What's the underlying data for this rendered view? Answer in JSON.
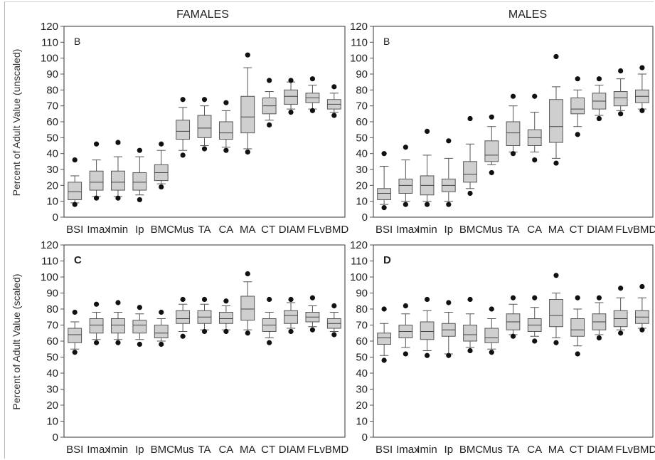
{
  "chart_data": {
    "type": "boxplot",
    "categories": [
      "BSI",
      "Imax",
      "Imin",
      "Ip",
      "BMC",
      "Mus",
      "TA",
      "CA",
      "MA",
      "CT",
      "DIAM",
      "FL",
      "vBMD"
    ],
    "ylim": [
      0,
      120
    ],
    "yticks": [
      0,
      10,
      20,
      30,
      40,
      50,
      60,
      70,
      80,
      90,
      100,
      110,
      120
    ],
    "column_titles": [
      "FAMALES",
      "MALES"
    ],
    "row_ylabels": [
      "Percent of Adult Value (unscaled)",
      "Percent of Adult Value (scaled)"
    ],
    "panels": [
      {
        "label": "B",
        "series": [
          {
            "min": 9,
            "q1": 11,
            "median": 16,
            "q3": 22,
            "max": 26,
            "outliers": [
              8,
              36
            ]
          },
          {
            "min": 13,
            "q1": 17,
            "median": 22,
            "q3": 29,
            "max": 36,
            "outliers": [
              12,
              46
            ]
          },
          {
            "min": 13,
            "q1": 17,
            "median": 22,
            "q3": 29,
            "max": 38,
            "outliers": [
              12,
              47
            ]
          },
          {
            "min": 14,
            "q1": 17,
            "median": 22,
            "q3": 28,
            "max": 38,
            "outliers": [
              11,
              42
            ]
          },
          {
            "min": 21,
            "q1": 23,
            "median": 28,
            "q3": 33,
            "max": 42,
            "outliers": [
              19,
              46
            ]
          },
          {
            "min": 42,
            "q1": 49,
            "median": 54,
            "q3": 61,
            "max": 69,
            "outliers": [
              39,
              74
            ]
          },
          {
            "min": 45,
            "q1": 50,
            "median": 56,
            "q3": 64,
            "max": 70,
            "outliers": [
              43,
              74
            ]
          },
          {
            "min": 44,
            "q1": 49,
            "median": 53,
            "q3": 60,
            "max": 67,
            "outliers": [
              42,
              72
            ]
          },
          {
            "min": 43,
            "q1": 53,
            "median": 63,
            "q3": 76,
            "max": 94,
            "outliers": [
              41,
              102
            ]
          },
          {
            "min": 61,
            "q1": 65,
            "median": 70,
            "q3": 75,
            "max": 79,
            "outliers": [
              58,
              86
            ]
          },
          {
            "min": 68,
            "q1": 71,
            "median": 76,
            "q3": 80,
            "max": 85,
            "outliers": [
              66,
              86
            ]
          },
          {
            "min": 68,
            "q1": 72,
            "median": 75,
            "q3": 78,
            "max": 83,
            "outliers": [
              67,
              87
            ]
          },
          {
            "min": 66,
            "q1": 68,
            "median": 71,
            "q3": 74,
            "max": 78,
            "outliers": [
              64,
              82
            ]
          }
        ]
      },
      {
        "label": "B",
        "series": [
          {
            "min": 8,
            "q1": 11,
            "median": 15,
            "q3": 18,
            "max": 32,
            "outliers": [
              6,
              40
            ]
          },
          {
            "min": 10,
            "q1": 15,
            "median": 20,
            "q3": 24,
            "max": 36,
            "outliers": [
              8,
              44
            ]
          },
          {
            "min": 10,
            "q1": 14,
            "median": 20,
            "q3": 26,
            "max": 39,
            "outliers": [
              8,
              54
            ]
          },
          {
            "min": 10,
            "q1": 16,
            "median": 20,
            "q3": 24,
            "max": 37,
            "outliers": [
              8,
              48
            ]
          },
          {
            "min": 18,
            "q1": 22,
            "median": 27,
            "q3": 35,
            "max": 46,
            "outliers": [
              15,
              62
            ]
          },
          {
            "min": 33,
            "q1": 35,
            "median": 39,
            "q3": 48,
            "max": 57,
            "outliers": [
              28,
              63
            ]
          },
          {
            "min": 41,
            "q1": 45,
            "median": 53,
            "q3": 60,
            "max": 70,
            "outliers": [
              40,
              76
            ]
          },
          {
            "min": 41,
            "q1": 45,
            "median": 50,
            "q3": 55,
            "max": 66,
            "outliers": [
              36,
              76
            ]
          },
          {
            "min": 37,
            "q1": 47,
            "median": 57,
            "q3": 74,
            "max": 82,
            "outliers": [
              34,
              101
            ]
          },
          {
            "min": 57,
            "q1": 65,
            "median": 68,
            "q3": 75,
            "max": 80,
            "outliers": [
              52,
              87
            ]
          },
          {
            "min": 64,
            "q1": 68,
            "median": 73,
            "q3": 78,
            "max": 83,
            "outliers": [
              62,
              87
            ]
          },
          {
            "min": 67,
            "q1": 70,
            "median": 75,
            "q3": 79,
            "max": 87,
            "outliers": [
              65,
              92
            ]
          },
          {
            "min": 68,
            "q1": 72,
            "median": 76,
            "q3": 80,
            "max": 90,
            "outliers": [
              67,
              94
            ]
          }
        ]
      },
      {
        "label": "C",
        "series": [
          {
            "min": 55,
            "q1": 59,
            "median": 64,
            "q3": 68,
            "max": 72,
            "outliers": [
              53,
              78
            ]
          },
          {
            "min": 61,
            "q1": 65,
            "median": 70,
            "q3": 74,
            "max": 78,
            "outliers": [
              59,
              83
            ]
          },
          {
            "min": 61,
            "q1": 65,
            "median": 70,
            "q3": 74,
            "max": 78,
            "outliers": [
              59,
              84
            ]
          },
          {
            "min": 61,
            "q1": 65,
            "median": 70,
            "q3": 73,
            "max": 77,
            "outliers": [
              58,
              81
            ]
          },
          {
            "min": 60,
            "q1": 62,
            "median": 65,
            "q3": 70,
            "max": 74,
            "outliers": [
              58,
              78
            ]
          },
          {
            "min": 66,
            "q1": 71,
            "median": 74,
            "q3": 79,
            "max": 83,
            "outliers": [
              63,
              86
            ]
          },
          {
            "min": 67,
            "q1": 71,
            "median": 75,
            "q3": 79,
            "max": 83,
            "outliers": [
              66,
              86
            ]
          },
          {
            "min": 67,
            "q1": 71,
            "median": 74,
            "q3": 78,
            "max": 82,
            "outliers": [
              66,
              85
            ]
          },
          {
            "min": 67,
            "q1": 73,
            "median": 80,
            "q3": 88,
            "max": 97,
            "outliers": [
              65,
              102
            ]
          },
          {
            "min": 62,
            "q1": 66,
            "median": 70,
            "q3": 74,
            "max": 78,
            "outliers": [
              59,
              86
            ]
          },
          {
            "min": 68,
            "q1": 71,
            "median": 76,
            "q3": 79,
            "max": 84,
            "outliers": [
              66,
              86
            ]
          },
          {
            "min": 69,
            "q1": 72,
            "median": 75,
            "q3": 78,
            "max": 82,
            "outliers": [
              67,
              87
            ]
          },
          {
            "min": 66,
            "q1": 68,
            "median": 71,
            "q3": 74,
            "max": 78,
            "outliers": [
              64,
              82
            ]
          }
        ]
      },
      {
        "label": "D",
        "series": [
          {
            "min": 51,
            "q1": 58,
            "median": 62,
            "q3": 65,
            "max": 71,
            "outliers": [
              48,
              80
            ]
          },
          {
            "min": 56,
            "q1": 62,
            "median": 66,
            "q3": 70,
            "max": 77,
            "outliers": [
              52,
              82
            ]
          },
          {
            "min": 54,
            "q1": 61,
            "median": 66,
            "q3": 72,
            "max": 79,
            "outliers": [
              51,
              86
            ]
          },
          {
            "min": 52,
            "q1": 63,
            "median": 67,
            "q3": 71,
            "max": 78,
            "outliers": [
              51,
              84
            ]
          },
          {
            "min": 56,
            "q1": 60,
            "median": 64,
            "q3": 70,
            "max": 77,
            "outliers": [
              54,
              86
            ]
          },
          {
            "min": 55,
            "q1": 59,
            "median": 62,
            "q3": 68,
            "max": 74,
            "outliers": [
              53,
              80
            ]
          },
          {
            "min": 64,
            "q1": 67,
            "median": 72,
            "q3": 77,
            "max": 83,
            "outliers": [
              63,
              87
            ]
          },
          {
            "min": 63,
            "q1": 66,
            "median": 70,
            "q3": 74,
            "max": 81,
            "outliers": [
              60,
              87
            ]
          },
          {
            "min": 62,
            "q1": 69,
            "median": 76,
            "q3": 86,
            "max": 90,
            "outliers": [
              59,
              101
            ]
          },
          {
            "min": 57,
            "q1": 63,
            "median": 67,
            "q3": 74,
            "max": 80,
            "outliers": [
              52,
              87
            ]
          },
          {
            "min": 64,
            "q1": 67,
            "median": 72,
            "q3": 77,
            "max": 84,
            "outliers": [
              62,
              87
            ]
          },
          {
            "min": 67,
            "q1": 69,
            "median": 74,
            "q3": 79,
            "max": 87,
            "outliers": [
              65,
              93
            ]
          },
          {
            "min": 68,
            "q1": 71,
            "median": 75,
            "q3": 79,
            "max": 87,
            "outliers": [
              67,
              94
            ]
          }
        ]
      }
    ]
  }
}
